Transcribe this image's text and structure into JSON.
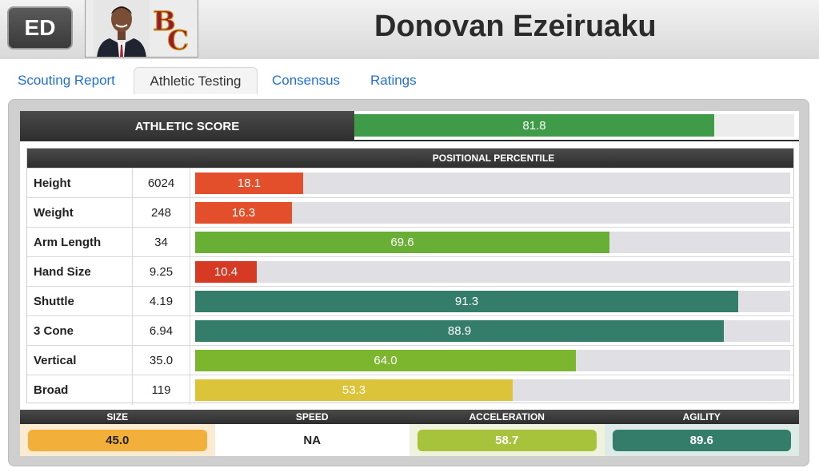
{
  "header": {
    "position_badge": "ED",
    "player_name": "Donovan Ezeiruaku",
    "team_logo_icon": "bc-logo-icon",
    "photo_icon": "player-photo-icon"
  },
  "tabs": [
    {
      "label": "Scouting Report",
      "active": false
    },
    {
      "label": "Athletic Testing",
      "active": true
    },
    {
      "label": "Consensus",
      "active": false
    },
    {
      "label": "Ratings",
      "active": false
    }
  ],
  "athletic_score": {
    "label": "ATHLETIC SCORE",
    "value": "81.8",
    "percent": 81.8,
    "color": "#3f9b48"
  },
  "percentile_table": {
    "header": "POSITIONAL PERCENTILE",
    "rows": [
      {
        "label": "Height",
        "value": "6024",
        "percentile": "18.1",
        "pct": 18.1,
        "color": "#e24f2a"
      },
      {
        "label": "Weight",
        "value": "248",
        "percentile": "16.3",
        "pct": 16.3,
        "color": "#e24f2a"
      },
      {
        "label": "Arm Length",
        "value": "34",
        "percentile": "69.6",
        "pct": 69.6,
        "color": "#6aaf35"
      },
      {
        "label": "Hand Size",
        "value": "9.25",
        "percentile": "10.4",
        "pct": 10.4,
        "color": "#d73a24"
      },
      {
        "label": "Shuttle",
        "value": "4.19",
        "percentile": "91.3",
        "pct": 91.3,
        "color": "#357d6b"
      },
      {
        "label": "3 Cone",
        "value": "6.94",
        "percentile": "88.9",
        "pct": 88.9,
        "color": "#357d6b"
      },
      {
        "label": "Vertical",
        "value": "35.0",
        "percentile": "64.0",
        "pct": 64.0,
        "color": "#7cb52e"
      },
      {
        "label": "Broad",
        "value": "119",
        "percentile": "53.3",
        "pct": 53.3,
        "color": "#dcc43a"
      }
    ]
  },
  "summary": [
    {
      "label": "SIZE",
      "value": "45.0",
      "color": "#f2b03a",
      "bg": "#fbebd2"
    },
    {
      "label": "SPEED",
      "value": "NA",
      "color": "",
      "bg": "#ffffff"
    },
    {
      "label": "ACCELERATION",
      "value": "58.7",
      "color": "#a7c23b",
      "bg": "#eff3dd"
    },
    {
      "label": "AGILITY",
      "value": "89.6",
      "color": "#357d6b",
      "bg": "#dcebe6"
    }
  ]
}
